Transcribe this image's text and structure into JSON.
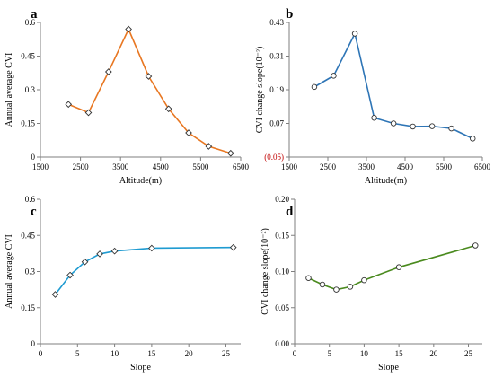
{
  "chart_data": [
    {
      "panel": "a",
      "type": "line",
      "xlabel": "Altitude(m)",
      "ylabel": "Annual average CVI",
      "xlim": [
        1500,
        6500
      ],
      "ylim": [
        0,
        0.6
      ],
      "xticks": [
        1500,
        2500,
        3500,
        4500,
        5500,
        6500
      ],
      "xtick_labels": [
        "1500",
        "2500",
        "3500",
        "4500",
        "5500",
        "6500"
      ],
      "yticks": [
        0,
        0.15,
        0.3,
        0.45,
        0.6
      ],
      "ytick_labels": [
        "0",
        "0.15",
        "0.3",
        "0.45",
        "0.6"
      ],
      "red_ticks": [],
      "color": "#e87722",
      "marker": "diamond",
      "series": [
        {
          "x": [
            2200,
            2700,
            3200,
            3700,
            4200,
            4700,
            5200,
            5700,
            6250
          ],
          "y": [
            0.235,
            0.198,
            0.38,
            0.57,
            0.36,
            0.215,
            0.108,
            0.048,
            0.017
          ]
        }
      ]
    },
    {
      "panel": "b",
      "type": "line",
      "xlabel": "Altitude(m)",
      "ylabel": "CVI change slope(10⁻²)",
      "xlim": [
        1500,
        6500
      ],
      "ylim": [
        -0.05,
        0.43
      ],
      "xticks": [
        1500,
        2500,
        3500,
        4500,
        5500,
        6500
      ],
      "xtick_labels": [
        "1500",
        "2500",
        "3500",
        "4500",
        "5500",
        "6500"
      ],
      "yticks": [
        -0.05,
        0.07,
        0.19,
        0.31,
        0.43
      ],
      "ytick_labels": [
        "(0.05)",
        "0.07",
        "0.19",
        "0.31",
        "0.43"
      ],
      "red_ticks": [
        -0.05
      ],
      "color": "#2e75b6",
      "marker": "circle",
      "series": [
        {
          "x": [
            2150,
            2650,
            3200,
            3700,
            4200,
            4700,
            5200,
            5700,
            6250
          ],
          "y": [
            0.2,
            0.24,
            0.39,
            0.09,
            0.07,
            0.059,
            0.06,
            0.052,
            0.016
          ]
        }
      ]
    },
    {
      "panel": "c",
      "type": "line",
      "xlabel": "Slope",
      "ylabel": "Annual average CVI",
      "xlim": [
        0,
        27
      ],
      "ylim": [
        0,
        0.6
      ],
      "xticks": [
        0,
        5,
        10,
        15,
        20,
        25
      ],
      "xtick_labels": [
        "0",
        "5",
        "10",
        "15",
        "20",
        "25"
      ],
      "yticks": [
        0,
        0.15,
        0.3,
        0.45,
        0.6
      ],
      "ytick_labels": [
        "0",
        "0.15",
        "0.3",
        "0.45",
        "0.6"
      ],
      "red_ticks": [],
      "color": "#1f9bd1",
      "marker": "diamond",
      "series": [
        {
          "x": [
            2,
            4,
            6,
            8,
            10,
            15,
            26
          ],
          "y": [
            0.205,
            0.285,
            0.34,
            0.373,
            0.385,
            0.397,
            0.4
          ]
        }
      ]
    },
    {
      "panel": "d",
      "type": "line",
      "xlabel": "Slope",
      "ylabel": "CVI change slope(10⁻²)",
      "xlim": [
        0,
        27
      ],
      "ylim": [
        0,
        0.2
      ],
      "xticks": [
        0,
        5,
        10,
        15,
        20,
        25
      ],
      "xtick_labels": [
        "0",
        "5",
        "10",
        "15",
        "20",
        "25"
      ],
      "yticks": [
        0,
        0.05,
        0.1,
        0.15,
        0.2
      ],
      "ytick_labels": [
        "0.00",
        "0.05",
        "0.10",
        "0.15",
        "0.20"
      ],
      "red_ticks": [],
      "color": "#4a8a1e",
      "marker": "circle",
      "series": [
        {
          "x": [
            2,
            4,
            6,
            8,
            10,
            15,
            26
          ],
          "y": [
            0.091,
            0.082,
            0.075,
            0.079,
            0.088,
            0.106,
            0.136
          ]
        }
      ]
    }
  ]
}
